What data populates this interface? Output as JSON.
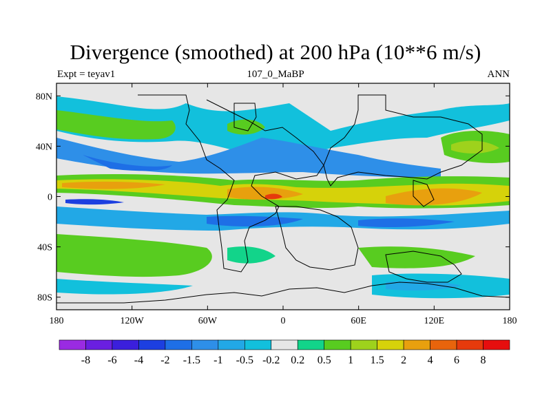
{
  "chart_data": {
    "type": "heatmap",
    "title": "Divergence (smoothed) at 200 hPa (10**6 m/s)",
    "subtitle_left": "Expt = teyav1",
    "subtitle_center": "107_0_MaBP",
    "subtitle_right": "ANN",
    "x_range": [
      -180,
      180
    ],
    "y_range": [
      -90,
      90
    ],
    "x_ticks": [
      {
        "value": -180,
        "label": "180"
      },
      {
        "value": -120,
        "label": "120W"
      },
      {
        "value": -60,
        "label": "60W"
      },
      {
        "value": 0,
        "label": "0"
      },
      {
        "value": 60,
        "label": "60E"
      },
      {
        "value": 120,
        "label": "120E"
      },
      {
        "value": 180,
        "label": "180"
      }
    ],
    "y_ticks": [
      {
        "value": 80,
        "label": "80N"
      },
      {
        "value": 40,
        "label": "40N"
      },
      {
        "value": 0,
        "label": "0"
      },
      {
        "value": -40,
        "label": "40S"
      },
      {
        "value": -80,
        "label": "80S"
      }
    ],
    "colorbar": {
      "levels": [
        "-8",
        "-6",
        "-4",
        "-2",
        "-1.5",
        "-1",
        "-0.5",
        "-0.2",
        "0.2",
        "0.5",
        "1",
        "1.5",
        "2",
        "4",
        "6",
        "8"
      ],
      "colors": [
        "#9a2be2",
        "#6a1fe0",
        "#3b1fdc",
        "#1c3fe0",
        "#1e6fe6",
        "#2e8fe8",
        "#22a8e6",
        "#12c0dc",
        "#e6e6e6",
        "#12d48a",
        "#58cc20",
        "#9ed21c",
        "#d6d20a",
        "#e8a00e",
        "#e8640c",
        "#e63a0c",
        "#e60e0e"
      ]
    },
    "fields": [
      {
        "lon": 0,
        "lat": 4,
        "value": 3
      },
      {
        "lon": 110,
        "lat": 0,
        "value": 2.5
      },
      {
        "lon": -150,
        "lat": 8,
        "value": 2
      },
      {
        "lon": -10,
        "lat": -12,
        "value": -1.2
      },
      {
        "lon": 80,
        "lat": -15,
        "value": -1
      },
      {
        "lon": -60,
        "lat": 30,
        "value": -1
      },
      {
        "lon": 40,
        "lat": 25,
        "value": -0.8
      },
      {
        "lon": -90,
        "lat": -40,
        "value": 0.7
      },
      {
        "lon": 150,
        "lat": 45,
        "value": 0.8
      },
      {
        "lon": -160,
        "lat": 55,
        "value": 0.6
      },
      {
        "lon": 40,
        "lat": -55,
        "value": -0.6
      }
    ]
  }
}
